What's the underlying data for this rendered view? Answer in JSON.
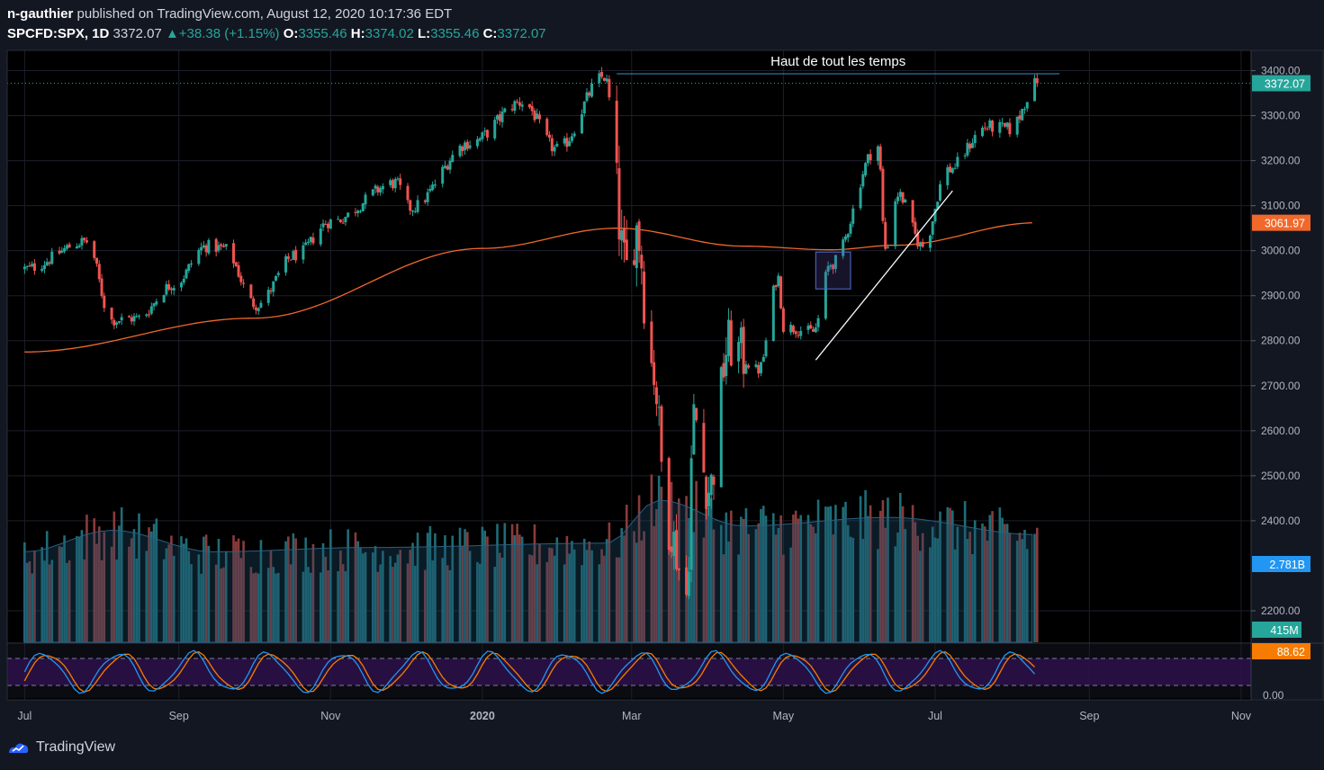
{
  "header": {
    "author": "n-gauthier",
    "published_text": "published on TradingView.com, August 12, 2020 10:17:36 EDT",
    "symbol": "SPCFD:SPX, 1D",
    "last": "3372.07",
    "change": "▲+38.38 (+1.15%)",
    "o_label": "O:",
    "o_value": "3355.46",
    "h_label": "H:",
    "h_value": "3374.02",
    "l_label": "L:",
    "l_value": "3355.46",
    "c_label": "C:",
    "c_value": "3372.07"
  },
  "footer": {
    "brand": "TradingView",
    "logo_icon": "tradingview-logo-icon"
  },
  "colors": {
    "background": "#131722",
    "up": "#26a69a",
    "down": "#ef5350",
    "ma": "#f0682a",
    "stoch_k": "#2196f3",
    "stoch_d": "#f57c00",
    "volume_ma": "#1e4d6b",
    "annotation": "#ffffff"
  },
  "chart_data": {
    "type": "candlestick",
    "price_axis": {
      "ticks": [
        "3400.00",
        "3300.00",
        "3200.00",
        "3100.00",
        "3000.00",
        "2900.00",
        "2800.00",
        "2700.00",
        "2600.00",
        "2500.00",
        "2400.00",
        "2200.00"
      ],
      "range": [
        2130,
        3445
      ]
    },
    "time_axis": {
      "ticks": [
        "Jul",
        "Sep",
        "Nov",
        "2020",
        "Mar",
        "May",
        "Jul",
        "Sep",
        "Nov"
      ]
    },
    "last_price_label": "3372.07",
    "ma_label": "3061.97",
    "volume_ma_label": "2.781B",
    "volume_label": "415M",
    "stoch_label": "88.62",
    "stoch_axis_tick": "0.00",
    "annotation_text": "Haut de tout les temps",
    "price_path": [
      [
        "2019-07-01",
        2960
      ],
      [
        "2019-07-26",
        3020
      ],
      [
        "2019-08-05",
        2845
      ],
      [
        "2019-08-15",
        2850
      ],
      [
        "2019-08-30",
        2925
      ],
      [
        "2019-09-12",
        3010
      ],
      [
        "2019-09-19",
        3005
      ],
      [
        "2019-10-02",
        2880
      ],
      [
        "2019-10-18",
        2990
      ],
      [
        "2019-11-01",
        3065
      ],
      [
        "2019-11-27",
        3150
      ],
      [
        "2019-12-03",
        3095
      ],
      [
        "2019-12-27",
        3240
      ],
      [
        "2020-01-17",
        3330
      ],
      [
        "2020-01-31",
        3225
      ],
      [
        "2020-02-19",
        3386
      ],
      [
        "2020-02-28",
        2955
      ],
      [
        "2020-03-03",
        3050
      ],
      [
        "2020-03-09",
        2750
      ],
      [
        "2020-03-16",
        2385
      ],
      [
        "2020-03-23",
        2235
      ],
      [
        "2020-03-26",
        2630
      ],
      [
        "2020-04-01",
        2470
      ],
      [
        "2020-04-09",
        2790
      ],
      [
        "2020-04-21",
        2735
      ],
      [
        "2020-04-29",
        2940
      ],
      [
        "2020-05-01",
        2830
      ],
      [
        "2020-05-13",
        2820
      ],
      [
        "2020-05-20",
        2970
      ],
      [
        "2020-06-08",
        3232
      ],
      [
        "2020-06-11",
        3005
      ],
      [
        "2020-06-16",
        3125
      ],
      [
        "2020-06-26",
        3010
      ],
      [
        "2020-07-06",
        3180
      ],
      [
        "2020-07-22",
        3275
      ],
      [
        "2020-07-31",
        3270
      ],
      [
        "2020-08-11",
        3372
      ]
    ],
    "ma200_path": [
      [
        "2019-07-01",
        2775
      ],
      [
        "2019-10-01",
        2850
      ],
      [
        "2020-01-01",
        3005
      ],
      [
        "2020-02-24",
        3050
      ],
      [
        "2020-04-15",
        3010
      ],
      [
        "2020-05-20",
        3002
      ],
      [
        "2020-06-15",
        3012
      ],
      [
        "2020-08-11",
        3062
      ]
    ],
    "volume_path": [
      [
        "2019-07-01",
        2.1
      ],
      [
        "2019-08-05",
        2.6
      ],
      [
        "2019-09-15",
        2.1
      ],
      [
        "2019-11-15",
        2.2
      ],
      [
        "2020-02-20",
        2.3
      ],
      [
        "2020-03-12",
        3.3
      ],
      [
        "2020-04-15",
        2.7
      ],
      [
        "2020-06-12",
        2.9
      ],
      [
        "2020-08-11",
        2.5
      ]
    ],
    "stoch_cycle_days": 30,
    "annotations": [
      {
        "kind": "horizontal-line",
        "price": 3393,
        "from": "2020-02-24",
        "to": "2020-08-20"
      },
      {
        "kind": "trendline",
        "from": [
          "2020-05-14",
          2757
        ],
        "to": [
          "2020-07-08",
          3133
        ]
      },
      {
        "kind": "rectangle",
        "from": [
          "2020-05-14",
          2915
        ],
        "to": [
          "2020-05-28",
          2997
        ]
      }
    ]
  }
}
